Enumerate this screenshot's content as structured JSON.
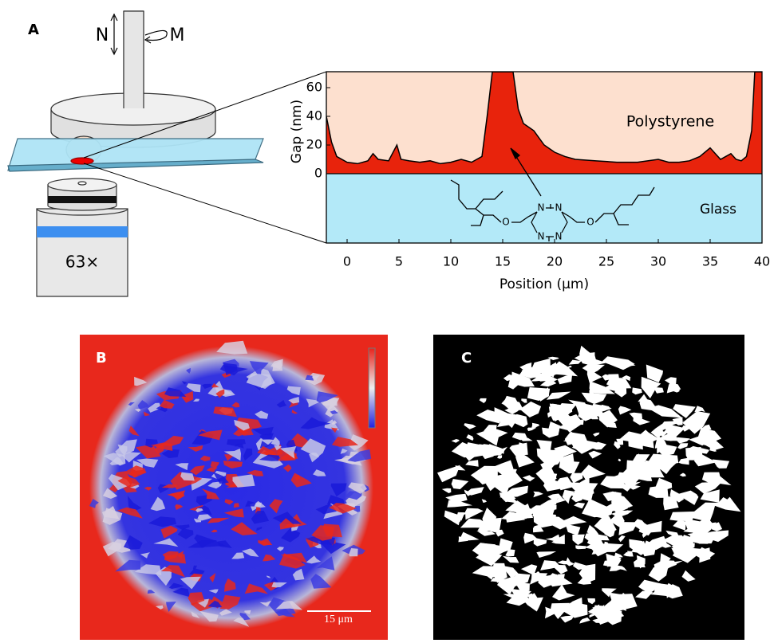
{
  "panel_labels": [
    "A",
    "B",
    "C"
  ],
  "apparatus": {
    "force_label": "N",
    "torque_label": "M",
    "objective_label": "63×"
  },
  "chart_data": {
    "type": "area",
    "x_label": "Position (μm)",
    "y_label": "Gap (nm)",
    "x": [
      -2,
      -1.5,
      -1,
      0,
      1,
      2,
      2.5,
      3,
      4,
      4.8,
      5.2,
      6,
      7,
      8,
      9,
      10,
      11,
      12,
      13,
      13.5,
      14,
      16,
      16.5,
      17,
      18,
      19,
      20,
      21,
      22,
      24,
      26,
      28,
      30,
      31,
      32,
      33,
      34,
      35,
      35.5,
      36,
      37,
      37.5,
      38,
      38.5,
      39,
      39.3,
      40
    ],
    "values": [
      40,
      22,
      12,
      8,
      7,
      9,
      14,
      10,
      9,
      20,
      10,
      9,
      8,
      9,
      7,
      8,
      10,
      8,
      12,
      40,
      71,
      71,
      45,
      35,
      30,
      20,
      15,
      12,
      10,
      9,
      8,
      8,
      10,
      8,
      8,
      9,
      12,
      18,
      14,
      10,
      14,
      10,
      9,
      12,
      30,
      71,
      71
    ],
    "color": "#e8230c",
    "xlim": [
      -2,
      40
    ],
    "xticks": [
      0,
      5,
      10,
      15,
      20,
      25,
      30,
      35,
      40
    ],
    "ylim": [
      -48.3,
      71.1
    ],
    "yticks": [
      0,
      20,
      40,
      60
    ],
    "annotations": [
      "Polystyrene",
      "Glass"
    ],
    "molecule_atoms": [
      "N",
      "N",
      "N",
      "N",
      "O",
      "O"
    ]
  },
  "image_b": {
    "scale_bar": "15 μm"
  }
}
